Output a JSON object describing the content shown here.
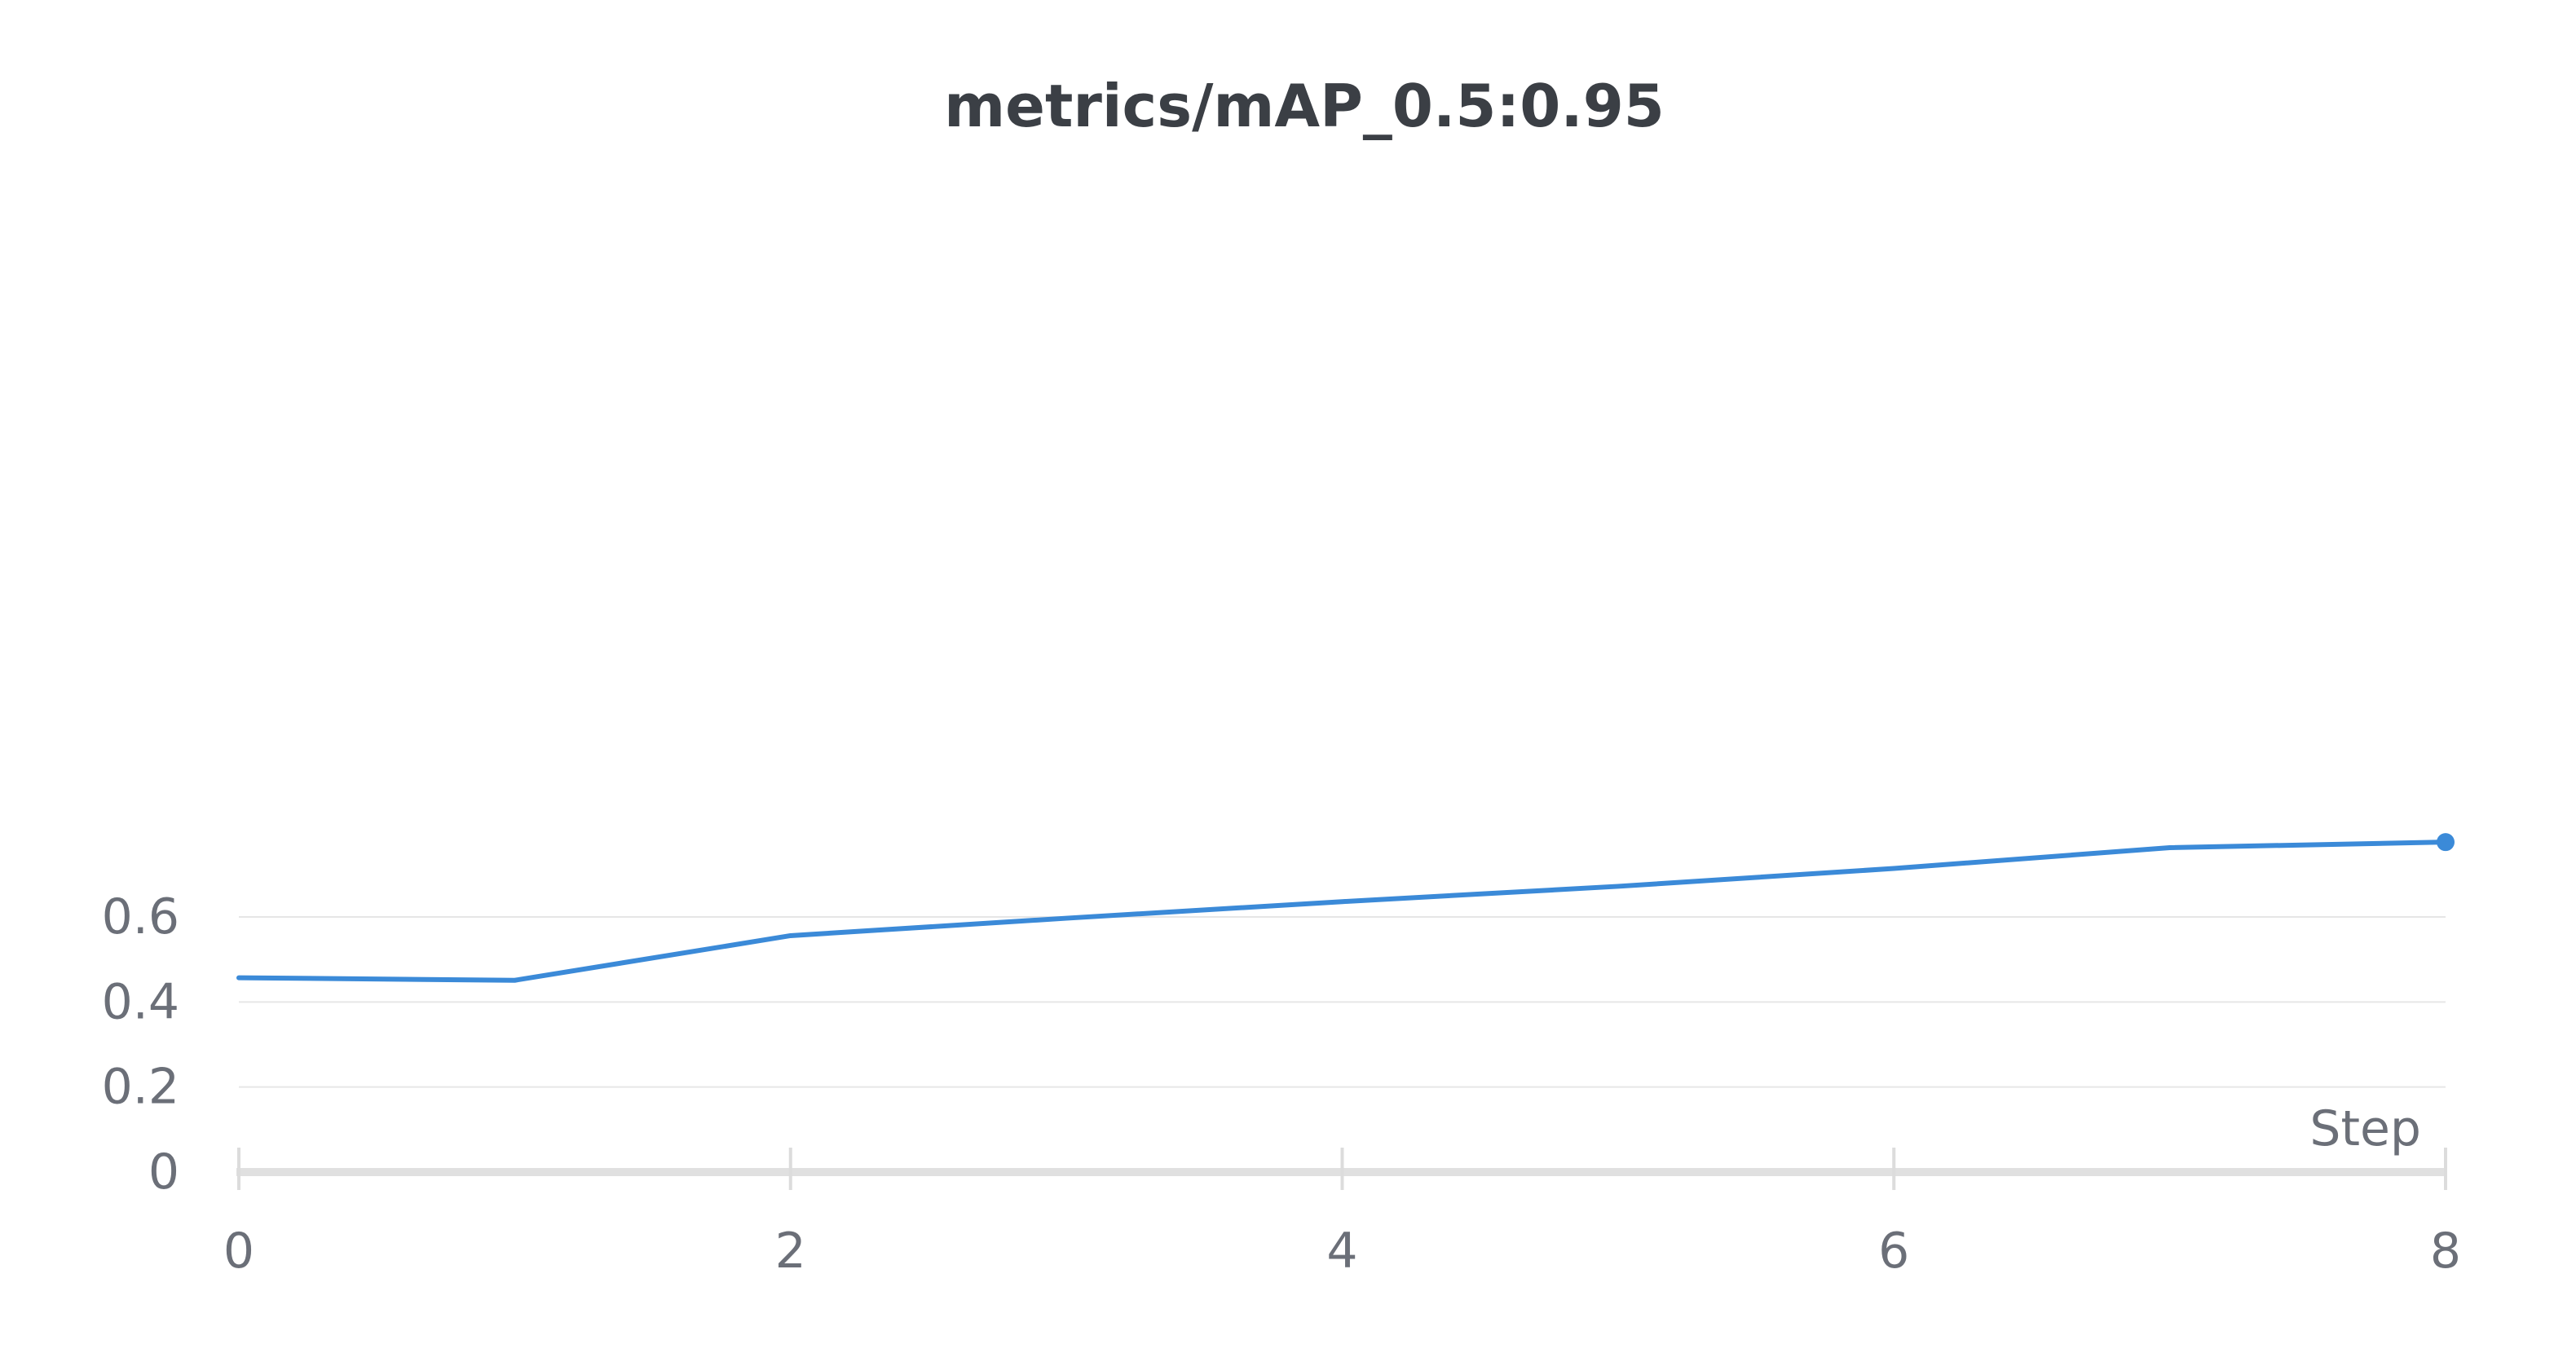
{
  "chart_data": {
    "type": "line",
    "title": "metrics/mAP_0.5:0.95",
    "xlabel": "Step",
    "ylabel": "",
    "x": [
      0,
      1,
      2,
      3,
      4,
      5,
      6,
      7,
      8
    ],
    "series": [
      {
        "values": [
          0.457,
          0.451,
          0.556,
          0.597,
          0.636,
          0.672,
          0.714,
          0.763,
          0.776
        ],
        "color": "#3b8ad8"
      }
    ],
    "xlim": [
      0,
      8
    ],
    "ylim": [
      0,
      0.8
    ],
    "xticks": [
      "0",
      "2",
      "4",
      "6",
      "8"
    ],
    "yticks": [
      "0",
      "0.2",
      "0.4",
      "0.6"
    ],
    "grid": true,
    "legend": "none",
    "last_point_marker": true
  }
}
